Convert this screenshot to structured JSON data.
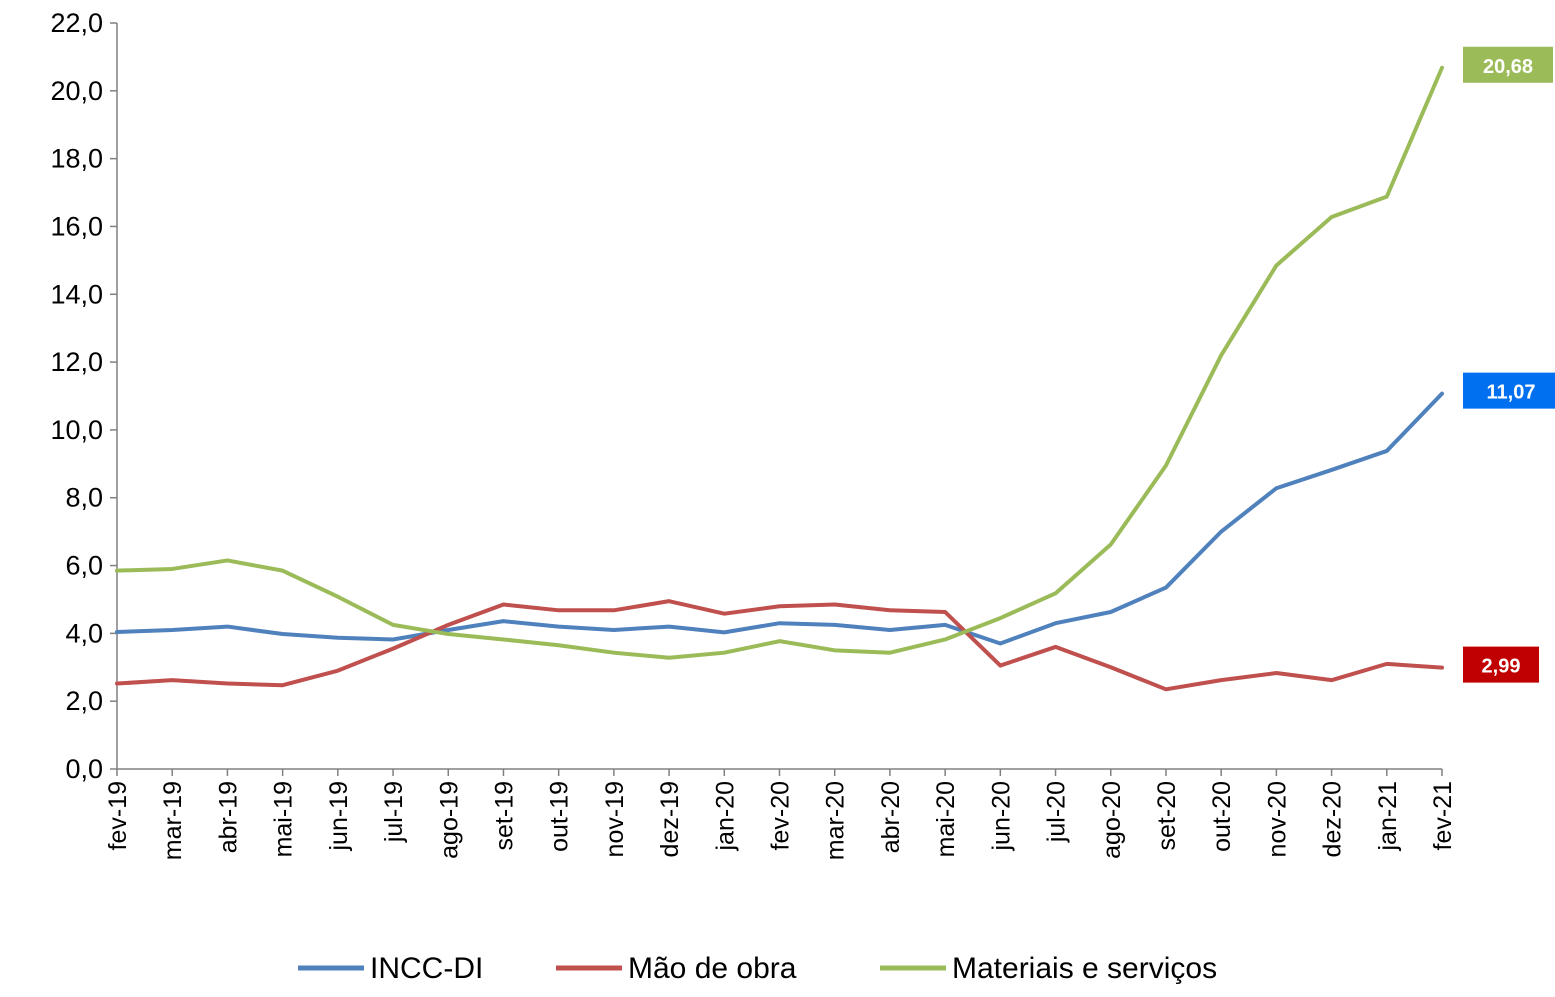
{
  "chart_data": {
    "type": "line",
    "title": "",
    "xlabel": "",
    "ylabel": "",
    "ylim": [
      0,
      22
    ],
    "yticks": [
      "0,0",
      "2,0",
      "4,0",
      "6,0",
      "8,0",
      "10,0",
      "12,0",
      "14,0",
      "16,0",
      "18,0",
      "20,0",
      "22,0"
    ],
    "grid": false,
    "legend_position": "bottom",
    "categories": [
      "fev-19",
      "mar-19",
      "abr-19",
      "mai-19",
      "jun-19",
      "jul-19",
      "ago-19",
      "set-19",
      "out-19",
      "nov-19",
      "dez-19",
      "jan-20",
      "fev-20",
      "mar-20",
      "abr-20",
      "mai-20",
      "jun-20",
      "jul-20",
      "ago-20",
      "set-20",
      "out-20",
      "nov-20",
      "dez-20",
      "jan-21",
      "fev-21"
    ],
    "series": [
      {
        "name": "INCC-DI",
        "color": "#4f81bd",
        "values": [
          4.04,
          4.1,
          4.2,
          3.98,
          3.87,
          3.82,
          4.1,
          4.36,
          4.2,
          4.1,
          4.2,
          4.03,
          4.3,
          4.25,
          4.1,
          4.25,
          3.7,
          4.3,
          4.63,
          5.35,
          7.0,
          8.28,
          8.82,
          9.38,
          11.07
        ],
        "end_label": "11,07",
        "label_color": "#0070f0"
      },
      {
        "name": "Mão de obra",
        "color": "#c0504d",
        "values": [
          2.52,
          2.62,
          2.52,
          2.47,
          2.9,
          3.55,
          4.25,
          4.85,
          4.68,
          4.68,
          4.95,
          4.58,
          4.8,
          4.85,
          4.68,
          4.63,
          3.05,
          3.6,
          3.0,
          2.35,
          2.62,
          2.83,
          2.62,
          3.1,
          2.99
        ],
        "end_label": "2,99",
        "label_color": "#c00000"
      },
      {
        "name": "Materiais e serviços",
        "color": "#9bbb59",
        "values": [
          5.85,
          5.9,
          6.15,
          5.85,
          5.08,
          4.25,
          3.98,
          3.82,
          3.65,
          3.43,
          3.28,
          3.43,
          3.77,
          3.5,
          3.43,
          3.82,
          4.45,
          5.18,
          6.62,
          8.95,
          12.2,
          14.85,
          16.28,
          16.88,
          20.68
        ],
        "end_label": "20,68",
        "label_color": "#9bbb59"
      }
    ]
  }
}
